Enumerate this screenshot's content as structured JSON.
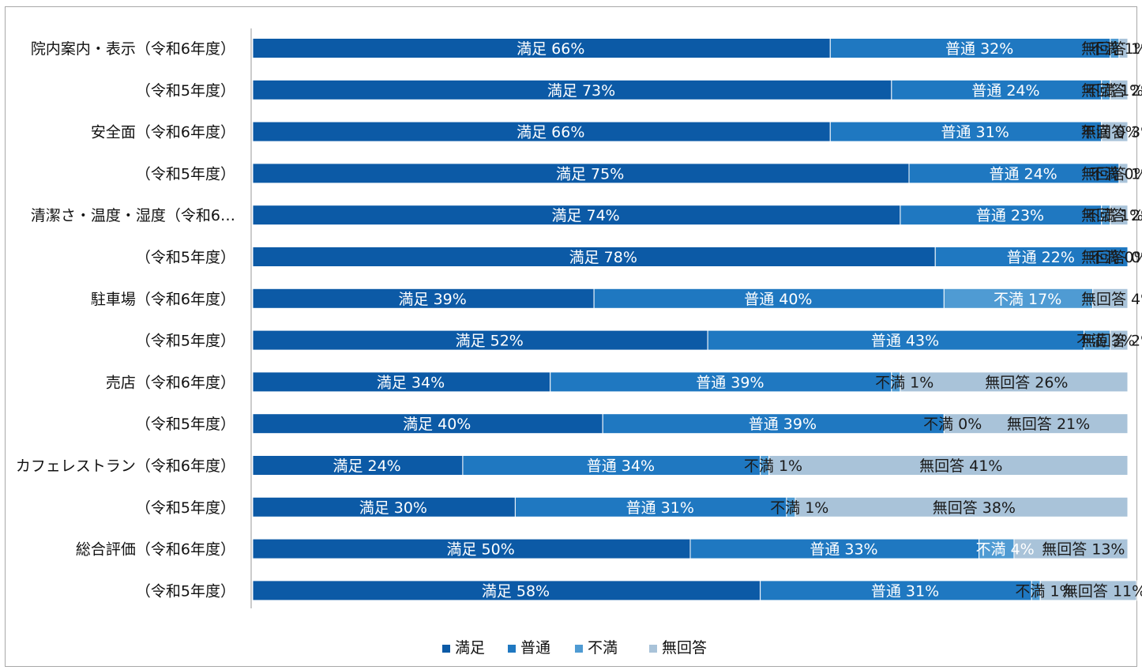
{
  "chart_data": {
    "type": "bar",
    "orientation": "horizontal",
    "stacked": true,
    "percent": true,
    "categories": [
      "院内案内・表示（令和6年度）",
      "（令和5年度）",
      "安全面（令和6年度）",
      "（令和5年度）",
      "清潔さ・温度・湿度（令和6…",
      "（令和5年度）",
      "駐車場（令和6年度）",
      "（令和5年度）",
      "売店（令和6年度）",
      "（令和5年度）",
      "カフェレストラン（令和6年度）",
      "（令和5年度）",
      "総合評価（令和6年度）",
      "（令和5年度）"
    ],
    "series": [
      {
        "name": "満足",
        "color": "#0c5aa6",
        "values": [
          66,
          73,
          66,
          75,
          74,
          78,
          39,
          52,
          34,
          40,
          24,
          30,
          50,
          58
        ]
      },
      {
        "name": "普通",
        "color": "#1f78c1",
        "values": [
          32,
          24,
          31,
          24,
          23,
          22,
          40,
          43,
          39,
          39,
          34,
          31,
          33,
          31
        ]
      },
      {
        "name": "不満",
        "color": "#4f9bd3",
        "values": [
          1,
          1,
          0,
          0,
          1,
          0,
          17,
          3,
          1,
          0,
          1,
          1,
          4,
          1
        ]
      },
      {
        "name": "無回答",
        "color": "#a9c3d9",
        "values": [
          1,
          2,
          3,
          1,
          2,
          0,
          4,
          2,
          26,
          21,
          41,
          38,
          13,
          11
        ]
      }
    ],
    "data_labels": [
      [
        "満足 66%",
        "普通 32%",
        "不満 1%",
        "無回答 1%"
      ],
      [
        "満足 73%",
        "普通 24%",
        "不満 1%",
        "無回答 2%"
      ],
      [
        "満足 66%",
        "普通 31%",
        "不満 0%",
        "無回答 3%"
      ],
      [
        "満足 75%",
        "普通 24%",
        "不満 0%",
        "無回答 1%"
      ],
      [
        "満足 74%",
        "普通 23%",
        "不満 1%",
        "無回答 2%"
      ],
      [
        "満足 78%",
        "普通 22%",
        "不満 0%",
        "無回答 0%"
      ],
      [
        "満足 39%",
        "普通 40%",
        "不満 17%",
        "無回答 4%"
      ],
      [
        "満足 52%",
        "普通 43%",
        "不満 3%",
        "無回答 2%"
      ],
      [
        "満足 34%",
        "普通 39%",
        "不満 1%",
        "無回答 26%"
      ],
      [
        "満足 40%",
        "普通 39%",
        "不満 0%",
        "無回答 21%"
      ],
      [
        "満足 24%",
        "普通 34%",
        "不満 1%",
        "無回答 41%"
      ],
      [
        "満足 30%",
        "普通 31%",
        "不満 1%",
        "無回答 38%"
      ],
      [
        "満足 50%",
        "普通 33%",
        "不満 4%",
        "無回答 13%"
      ],
      [
        "満足 58%",
        "普通 31%",
        "不満 1%",
        "無回答 11%"
      ]
    ],
    "xlim": [
      0,
      100
    ],
    "legend": {
      "position": "bottom",
      "entries": [
        "満足",
        "普通",
        "不満",
        "無回答"
      ]
    }
  }
}
